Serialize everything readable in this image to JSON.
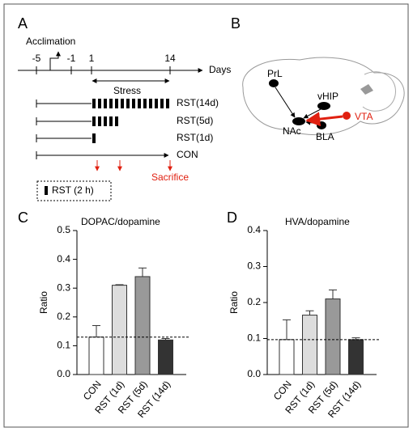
{
  "panel_a": {
    "letter": "A",
    "acclimation": "Acclimation",
    "timeline_ticks": [
      "-5",
      "-1",
      "1",
      "14"
    ],
    "axis_label": "Days",
    "stress": "Stress",
    "groups": [
      "RST(14d)",
      "RST(5d)",
      "RST(1d)",
      "CON"
    ],
    "sacrifice": "Sacrifice",
    "legend": "RST (2 h)"
  },
  "panel_b": {
    "letter": "B",
    "regions": [
      "PrL",
      "vHIP",
      "NAc",
      "BLA",
      "VTA"
    ]
  },
  "chart_data": [
    {
      "type": "bar",
      "panel": "C",
      "title": "DOPAC/dopamine",
      "y_label": "Ratio",
      "categories": [
        "CON",
        "RST (1d)",
        "RST (5d)",
        "RST (14d)"
      ],
      "values": [
        0.13,
        0.31,
        0.34,
        0.12
      ],
      "errors": [
        0.04,
        0.002,
        0.03,
        0.005
      ],
      "colors": [
        "#ffffff",
        "#dddddd",
        "#999999",
        "#333333"
      ],
      "ylim": [
        0,
        0.5
      ],
      "yticks": [
        {
          "value": 0,
          "label": "0.0"
        },
        0.1,
        0.2,
        0.3,
        0.4,
        0.5
      ],
      "reference_line": 0.13
    },
    {
      "type": "bar",
      "panel": "D",
      "title": "HVA/dopamine",
      "y_label": "Ratio",
      "categories": [
        "CON",
        "RST (1d)",
        "RST (5d)",
        "RST (14d)"
      ],
      "values": [
        0.097,
        0.165,
        0.21,
        0.097
      ],
      "errors": [
        0.055,
        0.012,
        0.025,
        0.005
      ],
      "colors": [
        "#ffffff",
        "#dddddd",
        "#999999",
        "#333333"
      ],
      "ylim": [
        0,
        0.4
      ],
      "yticks": [
        {
          "value": 0,
          "label": "0.0"
        },
        0.1,
        0.2,
        0.3,
        0.4
      ],
      "reference_line": 0.097
    }
  ]
}
